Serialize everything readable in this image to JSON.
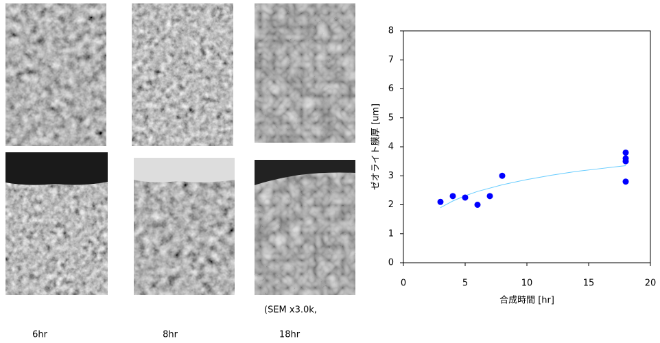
{
  "micrographs": {
    "labels": [
      "6hr",
      "8hr",
      "18hr"
    ],
    "caption": "(SEM x3.0k,"
  },
  "chart_data": {
    "type": "scatter",
    "xlabel": "合成時間 [hr]",
    "ylabel": "ゼオライト膜厚 [um]",
    "series": [
      {
        "color": "#0000ff",
        "x": [
          3,
          4,
          5,
          6,
          7,
          8,
          18,
          18,
          18,
          18
        ],
        "values": [
          2.1,
          2.3,
          2.25,
          2.0,
          2.3,
          3.0,
          3.8,
          3.6,
          3.5,
          2.8
        ]
      }
    ],
    "trendline": {
      "color": "#66ccff",
      "x": [
        3,
        4,
        5,
        6,
        8,
        10,
        12,
        14,
        16,
        18
      ],
      "values": [
        1.9,
        2.13,
        2.31,
        2.46,
        2.69,
        2.87,
        3.02,
        3.15,
        3.25,
        3.35
      ]
    },
    "xlim": [
      0,
      20
    ],
    "xticks": [
      0,
      5,
      10,
      15,
      20
    ],
    "ylim": [
      0,
      8
    ],
    "yticks": [
      0,
      1,
      2,
      3,
      4,
      5,
      6,
      7,
      8
    ]
  }
}
